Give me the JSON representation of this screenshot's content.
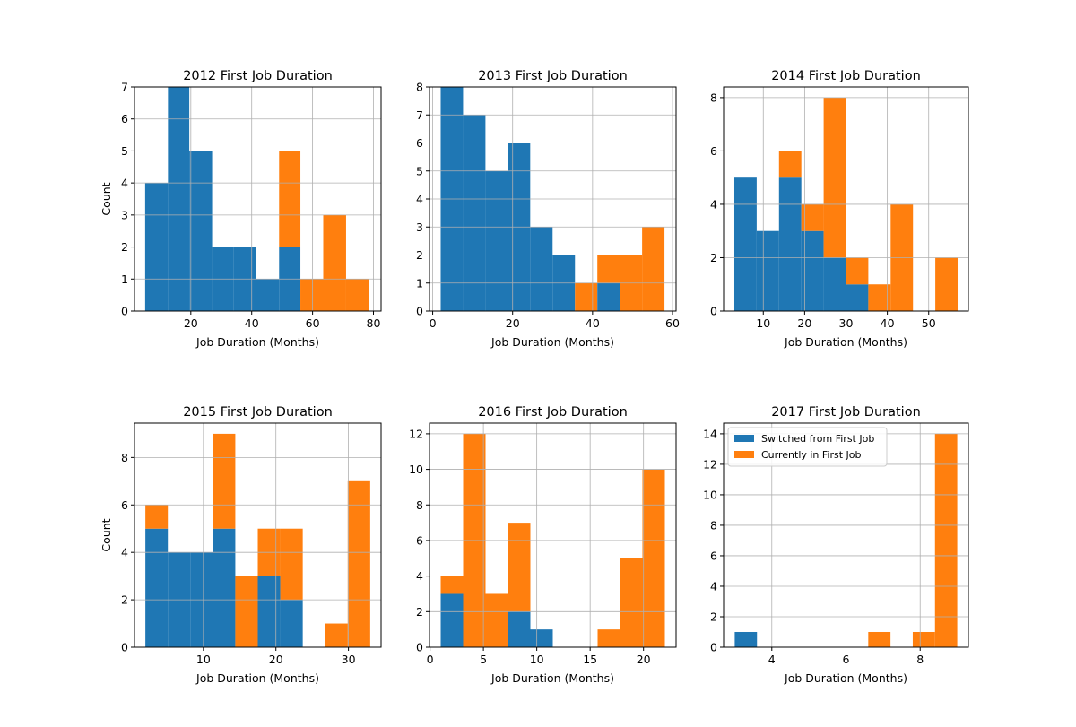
{
  "colors": {
    "switched": "#1f77b4",
    "current": "#ff7f0e",
    "grid": "#b0b0b0"
  },
  "chart_data": [
    {
      "type": "bar",
      "title": "2012 First Job Duration",
      "xlabel": "Job Duration (Months)",
      "ylabel": "Count",
      "xlim": [
        1.5,
        82.5
      ],
      "ylim": [
        0,
        7
      ],
      "xticks": [
        20,
        40,
        60,
        80
      ],
      "yticks": [
        0,
        1,
        2,
        3,
        4,
        5,
        6,
        7
      ],
      "grid": true,
      "bins": [
        {
          "x0": 5,
          "x1": 12.5,
          "switched": 4,
          "current": 0
        },
        {
          "x0": 12.5,
          "x1": 19.5,
          "switched": 7,
          "current": 0
        },
        {
          "x0": 19.5,
          "x1": 27,
          "switched": 5,
          "current": 0
        },
        {
          "x0": 27,
          "x1": 34,
          "switched": 2,
          "current": 0
        },
        {
          "x0": 34,
          "x1": 41.5,
          "switched": 2,
          "current": 0
        },
        {
          "x0": 41.5,
          "x1": 49,
          "switched": 1,
          "current": 0
        },
        {
          "x0": 49,
          "x1": 56,
          "switched": 2,
          "current": 3
        },
        {
          "x0": 56,
          "x1": 63.5,
          "switched": 0,
          "current": 1
        },
        {
          "x0": 63.5,
          "x1": 71,
          "switched": 0,
          "current": 3
        },
        {
          "x0": 71,
          "x1": 78.5,
          "switched": 0,
          "current": 1
        }
      ]
    },
    {
      "type": "bar",
      "title": "2013 First Job Duration",
      "xlabel": "Job Duration (Months)",
      "ylabel": "",
      "xlim": [
        -0.8,
        60.9
      ],
      "ylim": [
        0,
        8
      ],
      "xticks": [
        0,
        20,
        40,
        60
      ],
      "yticks": [
        0,
        1,
        2,
        3,
        4,
        5,
        6,
        7,
        8
      ],
      "grid": true,
      "bins": [
        {
          "x0": 2,
          "x1": 7.6,
          "switched": 8,
          "current": 0
        },
        {
          "x0": 7.6,
          "x1": 13.2,
          "switched": 7,
          "current": 0
        },
        {
          "x0": 13.2,
          "x1": 18.8,
          "switched": 5,
          "current": 0
        },
        {
          "x0": 18.8,
          "x1": 24.4,
          "switched": 6,
          "current": 0
        },
        {
          "x0": 24.4,
          "x1": 30,
          "switched": 3,
          "current": 0
        },
        {
          "x0": 30,
          "x1": 35.6,
          "switched": 2,
          "current": 0
        },
        {
          "x0": 35.6,
          "x1": 41.2,
          "switched": 0,
          "current": 1
        },
        {
          "x0": 41.2,
          "x1": 46.8,
          "switched": 1,
          "current": 1
        },
        {
          "x0": 46.8,
          "x1": 52.4,
          "switched": 0,
          "current": 2
        },
        {
          "x0": 52.4,
          "x1": 58,
          "switched": 0,
          "current": 3
        }
      ]
    },
    {
      "type": "bar",
      "title": "2014 First Job Duration",
      "xlabel": "Job Duration (Months)",
      "ylabel": "",
      "xlim": [
        0.4,
        59.6
      ],
      "ylim": [
        0,
        8.4
      ],
      "xticks": [
        10,
        20,
        30,
        40,
        50
      ],
      "yticks": [
        0,
        2,
        4,
        6,
        8
      ],
      "grid": true,
      "bins": [
        {
          "x0": 3,
          "x1": 8.4,
          "switched": 5,
          "current": 0
        },
        {
          "x0": 8.4,
          "x1": 13.8,
          "switched": 3,
          "current": 0
        },
        {
          "x0": 13.8,
          "x1": 19.2,
          "switched": 5,
          "current": 1
        },
        {
          "x0": 19.2,
          "x1": 24.6,
          "switched": 3,
          "current": 1
        },
        {
          "x0": 24.6,
          "x1": 30,
          "switched": 2,
          "current": 6
        },
        {
          "x0": 30,
          "x1": 35.4,
          "switched": 1,
          "current": 1
        },
        {
          "x0": 35.4,
          "x1": 40.8,
          "switched": 0,
          "current": 1
        },
        {
          "x0": 40.8,
          "x1": 46.2,
          "switched": 0,
          "current": 4
        },
        {
          "x0": 46.2,
          "x1": 51.6,
          "switched": 0,
          "current": 0
        },
        {
          "x0": 51.6,
          "x1": 57,
          "switched": 0,
          "current": 2
        }
      ]
    },
    {
      "type": "bar",
      "title": "2015 First Job Duration",
      "xlabel": "Job Duration (Months)",
      "ylabel": "Count",
      "xlim": [
        0.5,
        34.5
      ],
      "ylim": [
        0,
        9.45
      ],
      "xticks": [
        10,
        20,
        30
      ],
      "yticks": [
        0,
        2,
        4,
        6,
        8
      ],
      "grid": true,
      "bins": [
        {
          "x0": 2,
          "x1": 5.1,
          "switched": 5,
          "current": 1
        },
        {
          "x0": 5.1,
          "x1": 8.2,
          "switched": 4,
          "current": 0
        },
        {
          "x0": 8.2,
          "x1": 11.3,
          "switched": 4,
          "current": 0
        },
        {
          "x0": 11.3,
          "x1": 14.4,
          "switched": 5,
          "current": 4
        },
        {
          "x0": 14.4,
          "x1": 17.5,
          "switched": 0,
          "current": 3
        },
        {
          "x0": 17.5,
          "x1": 20.6,
          "switched": 3,
          "current": 2
        },
        {
          "x0": 20.6,
          "x1": 23.7,
          "switched": 2,
          "current": 3
        },
        {
          "x0": 23.7,
          "x1": 26.8,
          "switched": 0,
          "current": 0
        },
        {
          "x0": 26.8,
          "x1": 29.9,
          "switched": 0,
          "current": 1
        },
        {
          "x0": 29.9,
          "x1": 33,
          "switched": 0,
          "current": 7
        }
      ]
    },
    {
      "type": "bar",
      "title": "2016 First Job Duration",
      "xlabel": "Job Duration (Months)",
      "ylabel": "",
      "xlim": [
        -0.05,
        23.05
      ],
      "ylim": [
        0,
        12.6
      ],
      "xticks": [
        0,
        5,
        10,
        15,
        20
      ],
      "yticks": [
        0,
        2,
        4,
        6,
        8,
        10,
        12
      ],
      "grid": true,
      "bins": [
        {
          "x0": 1,
          "x1": 3.1,
          "switched": 3,
          "current": 1
        },
        {
          "x0": 3.1,
          "x1": 5.2,
          "switched": 0,
          "current": 12
        },
        {
          "x0": 5.2,
          "x1": 7.3,
          "switched": 0,
          "current": 3
        },
        {
          "x0": 7.3,
          "x1": 9.4,
          "switched": 2,
          "current": 5
        },
        {
          "x0": 9.4,
          "x1": 11.5,
          "switched": 1,
          "current": 0
        },
        {
          "x0": 11.5,
          "x1": 13.6,
          "switched": 0,
          "current": 0
        },
        {
          "x0": 13.6,
          "x1": 15.7,
          "switched": 0,
          "current": 0
        },
        {
          "x0": 15.7,
          "x1": 17.8,
          "switched": 0,
          "current": 1
        },
        {
          "x0": 17.8,
          "x1": 19.9,
          "switched": 0,
          "current": 5
        },
        {
          "x0": 19.9,
          "x1": 22,
          "switched": 0,
          "current": 10
        }
      ]
    },
    {
      "type": "bar",
      "title": "2017 First Job Duration",
      "xlabel": "Job Duration (Months)",
      "ylabel": "",
      "xlim": [
        2.7,
        9.3
      ],
      "ylim": [
        0,
        14.7
      ],
      "xticks": [
        4,
        6,
        8
      ],
      "yticks": [
        0,
        2,
        4,
        6,
        8,
        10,
        12,
        14
      ],
      "grid": true,
      "legend": {
        "placement": "upper-left",
        "entries": [
          {
            "label": "Switched from First Job",
            "color": "#1f77b4"
          },
          {
            "label": "Currently in First Job",
            "color": "#ff7f0e"
          }
        ]
      },
      "bins": [
        {
          "x0": 3,
          "x1": 3.6,
          "switched": 1,
          "current": 0
        },
        {
          "x0": 3.6,
          "x1": 4.2,
          "switched": 0,
          "current": 0
        },
        {
          "x0": 4.2,
          "x1": 4.8,
          "switched": 0,
          "current": 0
        },
        {
          "x0": 4.8,
          "x1": 5.4,
          "switched": 0,
          "current": 0
        },
        {
          "x0": 5.4,
          "x1": 6.0,
          "switched": 0,
          "current": 0
        },
        {
          "x0": 6.0,
          "x1": 6.6,
          "switched": 0,
          "current": 0
        },
        {
          "x0": 6.6,
          "x1": 7.2,
          "switched": 0,
          "current": 1
        },
        {
          "x0": 7.2,
          "x1": 7.8,
          "switched": 0,
          "current": 0
        },
        {
          "x0": 7.8,
          "x1": 8.4,
          "switched": 0,
          "current": 1
        },
        {
          "x0": 8.4,
          "x1": 9.0,
          "switched": 0,
          "current": 14
        }
      ]
    }
  ]
}
